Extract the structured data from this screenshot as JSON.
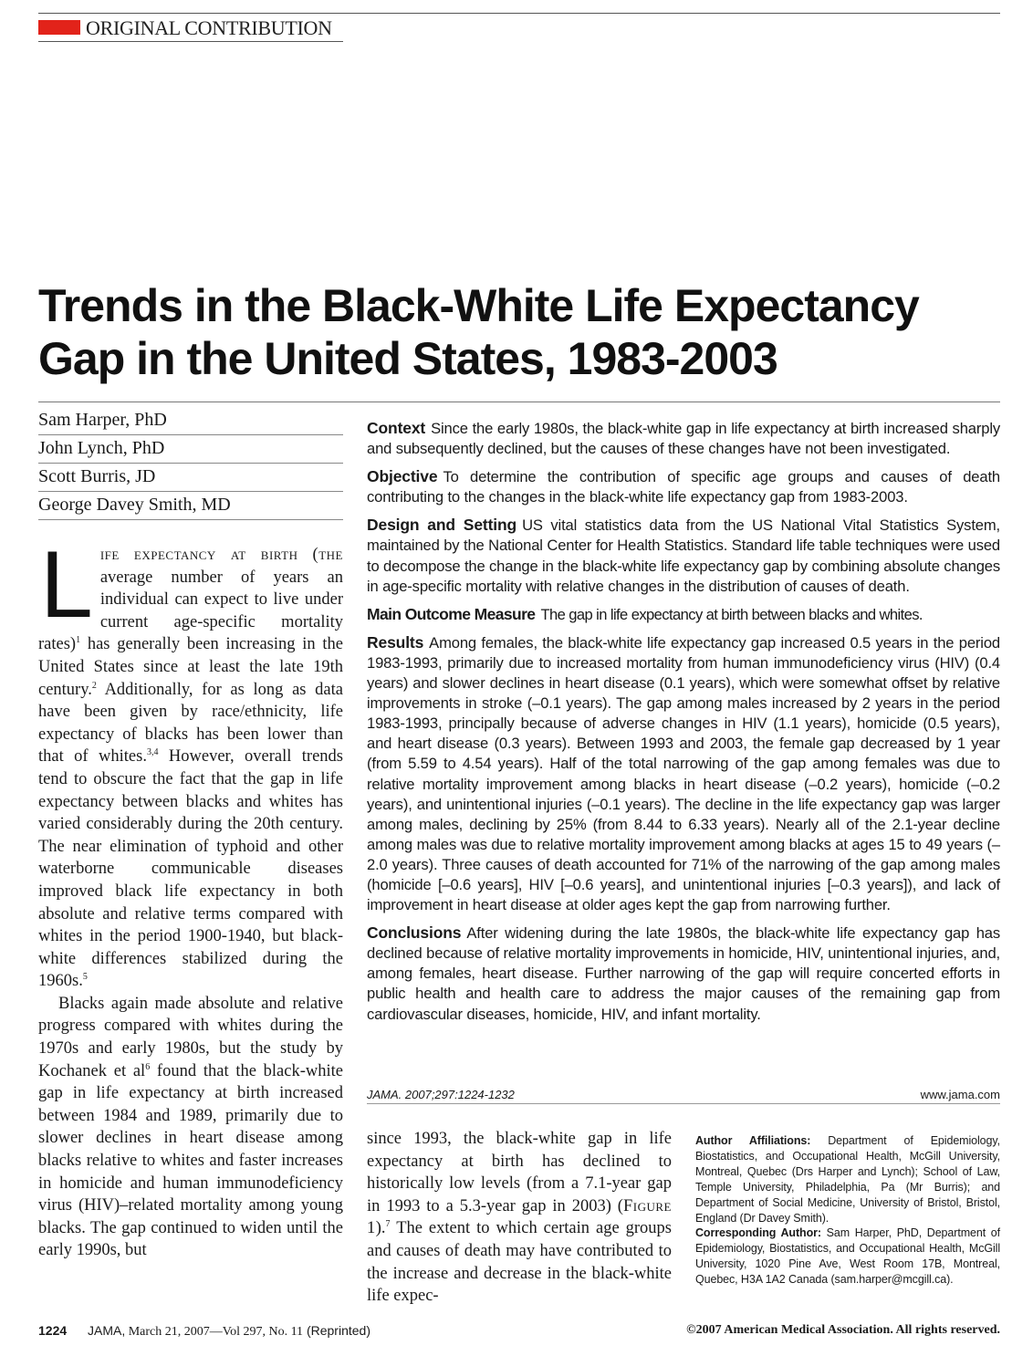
{
  "header": {
    "section_label": "ORIGINAL CONTRIBUTION",
    "accent_color": "#e2231a"
  },
  "title": {
    "line1": "Trends in the Black-White Life Expectancy",
    "line2": "Gap in the United States, 1983-2003"
  },
  "authors": [
    "Sam Harper, PhD",
    "John Lynch, PhD",
    "Scott Burris, JD",
    "George Davey Smith, MD"
  ],
  "abstract": {
    "context_head": "Context",
    "context": "Since the early 1980s, the black-white gap in life expectancy at birth increased sharply and subsequently declined, but the causes of these changes have not been investigated.",
    "objective_head": "Objective",
    "objective": "To determine the contribution of specific age groups and causes of death contributing to the changes in the black-white life expectancy gap from 1983-2003.",
    "design_head": "Design and Setting",
    "design": "US vital statistics data from the US National Vital Statistics System, maintained by the National Center for Health Statistics. Standard life table techniques were used to decompose the change in the black-white life expectancy gap by combining absolute changes in age-specific mortality with relative changes in the distribution of causes of death.",
    "outcome_head": "Main Outcome Measure",
    "outcome": "The gap in life expectancy at birth between blacks and whites.",
    "results_head": "Results",
    "results": "Among females, the black-white life expectancy gap increased 0.5 years in the period 1983-1993, primarily due to increased mortality from human immunodeficiency virus (HIV) (0.4 years) and slower declines in heart disease (0.1 years), which were somewhat offset by relative improvements in stroke (–0.1 years). The gap among males increased by 2 years in the period 1983-1993, principally because of adverse changes in HIV (1.1 years), homicide (0.5 years), and heart disease (0.3 years). Between 1993 and 2003, the female gap decreased by 1 year (from 5.59 to 4.54 years). Half of the total narrowing of the gap among females was due to relative mortality improvement among blacks in heart disease (–0.2 years), homicide (–0.2 years), and unintentional injuries (–0.1 years). The decline in the life expectancy gap was larger among males, declining by 25% (from 8.44 to 6.33 years). Nearly all of the 2.1-year decline among males was due to relative mortality improvement among blacks at ages 15 to 49 years (–2.0 years). Three causes of death accounted for 71% of the narrowing of the gap among males (homicide [–0.6 years], HIV [–0.6 years], and unintentional injuries [–0.3 years]), and lack of improvement in heart disease at older ages kept the gap from narrowing further.",
    "conclusions_head": "Conclusions",
    "conclusions": "After widening during the late 1980s, the black-white life expectancy gap has declined because of relative mortality improvements in homicide, HIV, unintentional injuries, and, among females, heart disease. Further narrowing of the gap will require concerted efforts in public health and health care to address the major causes of the remaining gap from cardiovascular diseases, homicide, HIV, and infant mortality.",
    "citation": "JAMA. 2007;297:1224-1232",
    "url": "www.jama.com"
  },
  "body": {
    "dropcap": "L",
    "p1_lead": "ife expectancy at birth (the",
    "p1_a": " average number of years an individual can expect to live under current age-specific mortality rates)",
    "ref1": "1",
    "p1_b": " has generally been increasing in the United States since at least the late 19th century.",
    "ref2": "2",
    "p1_c": " Additionally, for as long as data have been given by race/ethnicity, life expectancy of blacks has been lower than that of whites.",
    "ref3": "3,4",
    "p1_d": " However, overall trends tend to obscure the fact that the gap in life expectancy between blacks and whites has varied considerably during the 20th century. The near elimination of typhoid and other waterborne communicable diseases improved black life expectancy in both absolute and relative terms compared with whites in the period 1900-1940, but black-white differences stabilized during the 1960s.",
    "ref4": "5",
    "p2_a": "Blacks again made absolute and relative progress compared with whites during the 1970s and early 1980s, but the study by Kochanek et al",
    "ref5": "6",
    "p2_b": " found that the black-white gap in life expectancy at birth increased between 1984 and 1989, primarily due to slower declines in heart disease among blacks relative to whites and faster increases in homicide and human immunodeficiency virus (HIV)–related mortality among young blacks. The gap continued to widen until the early 1990s, but",
    "col2_a": "since 1993, the black-white gap in life expectancy at birth has declined to historically low levels (from a 7.1-year gap in 1993 to a 5.3-year gap in 2003) (",
    "figure_ref": "Figure 1",
    "col2_b": ").",
    "ref6": "7",
    "col2_c": " The extent to which certain age groups and causes of death may have contributed to the increase and decrease in the black-white life expec-"
  },
  "affiliations": {
    "affil_head": "Author Affiliations:",
    "affil_text": " Department of Epidemiology, Biostatistics, and Occupational Health, McGill University, Montreal, Quebec (Drs Harper and Lynch); School of Law, Temple University, Philadelphia, Pa (Mr Burris); and Department of Social Medicine, University of Bristol, Bristol, England (Dr Davey Smith).",
    "corr_head": "Corresponding Author:",
    "corr_text": " Sam Harper, PhD, Department of Epidemiology, Biostatistics, and Occupational Health, McGill University, 1020 Pine Ave, West Room 17B, Montreal, Quebec, H3A 1A2 Canada (sam.harper@mcgill.ca)."
  },
  "footer": {
    "page_number": "1224",
    "journal": "JAMA,",
    "date": " March 21, 2007—Vol 297, No. 11",
    "reprinted": " (Reprinted)",
    "copyright": "©2007 American Medical Association. All rights reserved."
  }
}
